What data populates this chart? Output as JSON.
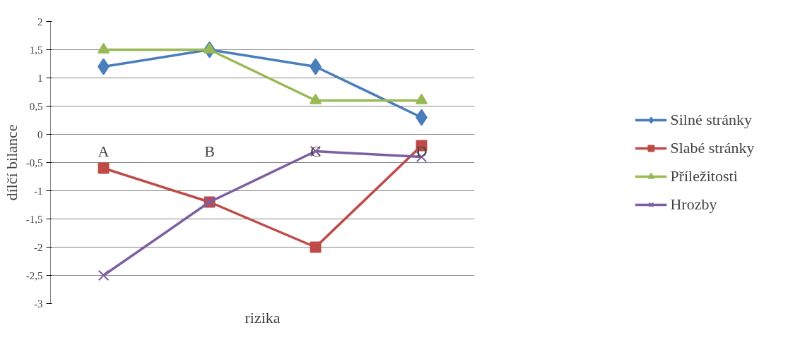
{
  "chart_data": {
    "type": "line",
    "xlabel": "rizika",
    "ylabel": "dílčí bilance",
    "categories": [
      "A",
      "B",
      "C",
      "D"
    ],
    "ylim": [
      -3,
      2
    ],
    "yticks": [
      {
        "value": -3,
        "label": "-3"
      },
      {
        "value": -2.5,
        "label": "-2,5"
      },
      {
        "value": -2,
        "label": "-2"
      },
      {
        "value": -1.5,
        "label": "-1,5"
      },
      {
        "value": -1,
        "label": "-1"
      },
      {
        "value": -0.5,
        "label": "-0,5"
      },
      {
        "value": 0,
        "label": "0"
      },
      {
        "value": 0.5,
        "label": "0,5"
      },
      {
        "value": 1,
        "label": "1"
      },
      {
        "value": 1.5,
        "label": "1,5"
      },
      {
        "value": 2,
        "label": "2"
      }
    ],
    "grid": "y",
    "legend": "right",
    "series": [
      {
        "name": "Silné stránky",
        "color": "#4a7ebb",
        "marker": "diamond",
        "values": [
          1.2,
          1.5,
          1.2,
          0.3
        ]
      },
      {
        "name": "Slabé stránky",
        "color": "#be4b48",
        "marker": "square",
        "values": [
          -0.6,
          -1.2,
          -2,
          -0.2
        ]
      },
      {
        "name": "Příležitosti",
        "color": "#98b954",
        "marker": "triangle",
        "values": [
          1.5,
          1.5,
          0.6,
          0.6
        ]
      },
      {
        "name": "Hrozby",
        "color": "#7d5fa0",
        "marker": "cross",
        "values": [
          -2.5,
          -1.2,
          -0.3,
          -0.4
        ]
      }
    ]
  }
}
